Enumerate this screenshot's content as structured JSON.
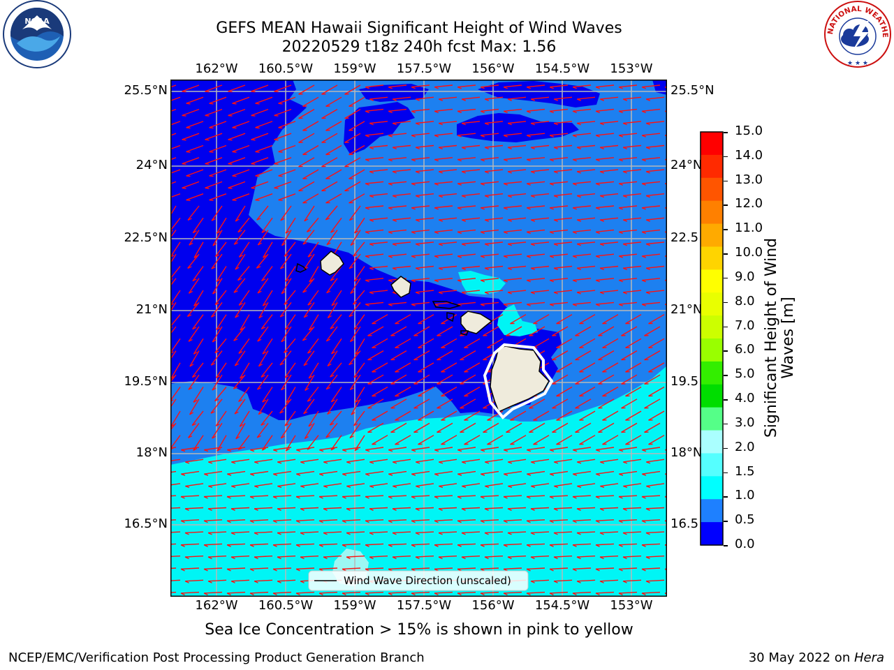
{
  "title": {
    "line1": "GEFS MEAN Hawaii Significant Height of Wind Waves",
    "line2": "20220529 t18z 240h fcst   Max: 1.56"
  },
  "map": {
    "lon_labels": [
      "162°W",
      "160.5°W",
      "159°W",
      "157.5°W",
      "156°W",
      "154.5°W",
      "153°W"
    ],
    "lat_labels": [
      "25.5°N",
      "24°N",
      "22.5°N",
      "21°N",
      "19.5°N",
      "18°N",
      "16.5°N"
    ],
    "lat_labels_right": [
      "25.5°N",
      "24°N",
      "22.5",
      "21°N",
      "19.5",
      "18°N",
      "16.5"
    ],
    "legend_label": "Wind Wave Direction (unscaled)",
    "colors": {
      "deep": "#0000ee",
      "mid": "#1d80f0",
      "light": "#00f5f5",
      "pale": "#9cf7f3",
      "land": "#efebdc",
      "arrow": "#ff1010",
      "grid": "#b8b8b8"
    }
  },
  "colorbar": {
    "title": "Significant Height of Wind Waves [m]",
    "labels": [
      "15.0",
      "14.0",
      "13.0",
      "12.0",
      "11.0",
      "10.0",
      "9.0",
      "8.0",
      "7.0",
      "6.0",
      "5.0",
      "4.0",
      "3.0",
      "2.0",
      "1.5",
      "1.0",
      "0.5",
      "0.0"
    ],
    "colors": [
      "#ff0000",
      "#ff2a00",
      "#ff5500",
      "#ff8000",
      "#ffaa00",
      "#ffd400",
      "#ffff00",
      "#e9ff00",
      "#ccff00",
      "#99ff00",
      "#33ee00",
      "#00dd00",
      "#55ff88",
      "#aaffff",
      "#55ffff",
      "#00ffff",
      "#1e80ff",
      "#0000ff"
    ]
  },
  "logos": {
    "left": "NOAA",
    "right": "NATIONAL WEATHER SERVICE"
  },
  "note": "Sea Ice Concentration > 15% is shown in pink to yellow",
  "footer": {
    "left": "NCEP/EMC/Verification Post Processing Product Generation Branch",
    "right_date": "30 May 2022 on ",
    "right_host": "Hera"
  }
}
